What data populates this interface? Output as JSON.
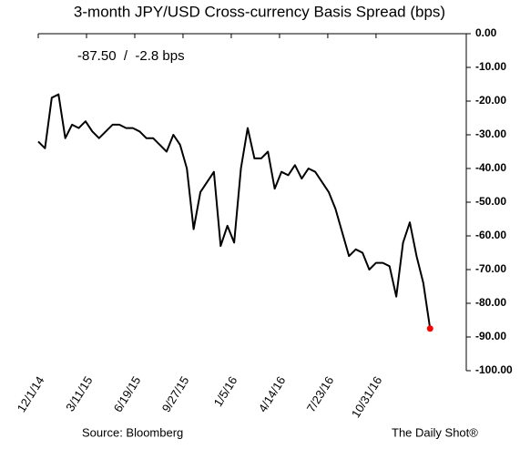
{
  "chart_data": {
    "type": "line",
    "title": "3-month JPY/USD Cross-currency Basis Spread (bps)",
    "annotation": "-87.50  /  -2.8 bps",
    "source": "Source: Bloomberg",
    "credit": "The Daily Shot®",
    "x": [
      "12/1/14",
      "12/15/14",
      "12/29/14",
      "1/12/15",
      "1/26/15",
      "2/9/15",
      "2/23/15",
      "3/9/15",
      "3/23/15",
      "4/6/15",
      "4/20/15",
      "5/4/15",
      "5/18/15",
      "6/1/15",
      "6/15/15",
      "6/29/15",
      "7/13/15",
      "7/27/15",
      "8/10/15",
      "8/24/15",
      "9/7/15",
      "9/21/15",
      "10/5/15",
      "10/19/15",
      "11/2/15",
      "11/16/15",
      "11/30/15",
      "12/14/15",
      "12/28/15",
      "1/11/16",
      "1/25/16",
      "2/8/16",
      "2/22/16",
      "3/7/16",
      "3/21/16",
      "4/4/16",
      "4/18/16",
      "5/2/16",
      "5/16/16",
      "5/30/16",
      "6/13/16",
      "6/27/16",
      "7/11/16",
      "7/25/16",
      "8/8/16",
      "8/22/16",
      "9/5/16",
      "9/19/16",
      "10/3/16",
      "10/17/16",
      "10/31/16",
      "11/14/16",
      "11/28/16",
      "12/12/16",
      "12/26/16",
      "1/9/17",
      "1/23/17",
      "2/6/17",
      "2/20/17"
    ],
    "series": [
      {
        "color": "#000000",
        "marker_color": "#ff0000",
        "values": [
          -32,
          -34,
          -19,
          -18,
          -31,
          -27,
          -28,
          -26,
          -29,
          -31,
          -29,
          -27,
          -27,
          -28,
          -28,
          -29,
          -31,
          -31,
          -33,
          -35,
          -30,
          -33,
          -40,
          -58,
          -47,
          -44,
          -41,
          -63,
          -57,
          -62,
          -40,
          -28,
          -37,
          -37,
          -35,
          -46,
          -41,
          -42,
          -39,
          -43,
          -40,
          -41,
          -44,
          -47,
          -52,
          -59,
          -66,
          -64,
          -65,
          -70,
          -68,
          -68,
          -69,
          -78,
          -62,
          -56,
          -66,
          -74,
          -87.5
        ]
      }
    ],
    "xlim": [
      "12/1/14",
      "5/6/17"
    ],
    "xticks": [
      "12/1/14",
      "3/11/15",
      "6/19/15",
      "9/27/15",
      "1/5/16",
      "4/14/16",
      "7/23/16",
      "10/31/16"
    ],
    "ylim": [
      -100,
      0
    ],
    "yticks": [
      {
        "value": 0,
        "label": "0.00"
      },
      {
        "value": -10,
        "label": "-10.00"
      },
      {
        "value": -20,
        "label": "-20.00"
      },
      {
        "value": -30,
        "label": "-30.00"
      },
      {
        "value": -40,
        "label": "-40.00"
      },
      {
        "value": -50,
        "label": "-50.00"
      },
      {
        "value": -60,
        "label": "-60.00"
      },
      {
        "value": -70,
        "label": "-70.00"
      },
      {
        "value": -80,
        "label": "-80.00"
      },
      {
        "value": -90,
        "label": "-90.00"
      },
      {
        "value": -100,
        "label": "-100.00"
      }
    ],
    "grid": false
  }
}
